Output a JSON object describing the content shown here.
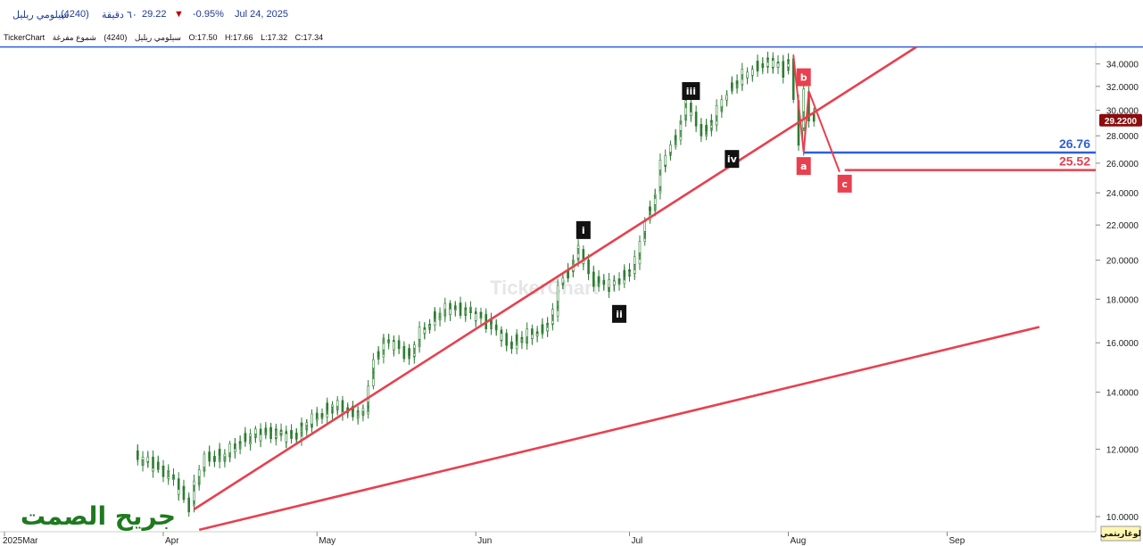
{
  "header": {
    "symbol_name": "سيلومي ريليل",
    "code": "(4240)",
    "interval": "٦٠ دقيقة",
    "last_price": "29.22",
    "change_pct": "-0.95%",
    "date": "Jul 24, 2025",
    "change_direction": "down"
  },
  "ohlc_bar": {
    "brand": "TickerChart",
    "symbol": "سيلومي ريليل",
    "code": "(4240)",
    "chart_kind": "شموع مفرغة",
    "open": "O:17.50",
    "high": "H:17.66",
    "low": "L:17.32",
    "close": "C:17.34"
  },
  "watermark": "TickerChart",
  "brand_overlay": "جريح الصمت",
  "scale_button": "لوغاريتمي",
  "colors": {
    "candle": "#2e7d32",
    "trend": "#e8404f",
    "level_blue": "#2f5fd6",
    "level_red": "#e8404f",
    "top_line": "#2f5fd6",
    "price_tag": "#8b0d0d"
  },
  "chart_data": {
    "type": "candlestick",
    "y_scale": "log",
    "ylim": [
      9.6,
      36.0
    ],
    "y_ticks": [
      "34.0000",
      "32.0000",
      "30.0000",
      "28.0000",
      "26.0000",
      "24.0000",
      "22.0000",
      "20.0000",
      "18.0000",
      "16.0000",
      "14.0000",
      "12.0000",
      "10.0000"
    ],
    "x_ticks": [
      "2025Mar",
      "Apr",
      "May",
      "Jun",
      "Jul",
      "Aug",
      "Sep"
    ],
    "last_price_tag": "29.2200",
    "levels": [
      {
        "value": 26.76,
        "label": "26.76",
        "color": "#2f5fd6"
      },
      {
        "value": 25.52,
        "label": "25.52",
        "color": "#e8404f"
      }
    ],
    "resistance_line": 35.6,
    "series": [
      {
        "date": "2025-03-27",
        "close": 11.8
      },
      {
        "date": "2025-03-31",
        "close": 11.5
      },
      {
        "date": "2025-04-03",
        "close": 11.2
      },
      {
        "date": "2025-04-07",
        "close": 10.3
      },
      {
        "date": "2025-04-08",
        "close": 10.9
      },
      {
        "date": "2025-04-10",
        "close": 11.7
      },
      {
        "date": "2025-04-14",
        "close": 11.8
      },
      {
        "date": "2025-04-17",
        "close": 12.3
      },
      {
        "date": "2025-04-22",
        "close": 12.6
      },
      {
        "date": "2025-04-27",
        "close": 12.4
      },
      {
        "date": "2025-05-01",
        "close": 13.0
      },
      {
        "date": "2025-05-05",
        "close": 13.5
      },
      {
        "date": "2025-05-08",
        "close": 13.3
      },
      {
        "date": "2025-05-11",
        "close": 13.2
      },
      {
        "date": "2025-05-13",
        "close": 15.3
      },
      {
        "date": "2025-05-15",
        "close": 16.1
      },
      {
        "date": "2025-05-18",
        "close": 15.8
      },
      {
        "date": "2025-05-20",
        "close": 15.4
      },
      {
        "date": "2025-05-22",
        "close": 16.4
      },
      {
        "date": "2025-05-25",
        "close": 17.2
      },
      {
        "date": "2025-05-28",
        "close": 17.6
      },
      {
        "date": "2025-06-01",
        "close": 17.4
      },
      {
        "date": "2025-06-05",
        "close": 16.8
      },
      {
        "date": "2025-06-08",
        "close": 15.9
      },
      {
        "date": "2025-06-11",
        "close": 16.2
      },
      {
        "date": "2025-06-15",
        "close": 16.6
      },
      {
        "date": "2025-06-17",
        "close": 17.2
      },
      {
        "date": "2025-06-18",
        "close": 18.7
      },
      {
        "date": "2025-06-20",
        "close": 19.4
      },
      {
        "date": "2025-06-22",
        "close": 20.6
      },
      {
        "date": "2025-06-24",
        "close": 19.2
      },
      {
        "date": "2025-06-26",
        "close": 18.8
      },
      {
        "date": "2025-06-28",
        "close": 18.7
      },
      {
        "date": "2025-07-01",
        "close": 19.2
      },
      {
        "date": "2025-07-03",
        "close": 19.8
      },
      {
        "date": "2025-07-05",
        "close": 22.3
      },
      {
        "date": "2025-07-07",
        "close": 24.0
      },
      {
        "date": "2025-07-08",
        "close": 25.8
      },
      {
        "date": "2025-07-10",
        "close": 27.2
      },
      {
        "date": "2025-07-12",
        "close": 29.2
      },
      {
        "date": "2025-07-13",
        "close": 30.6
      },
      {
        "date": "2025-07-15",
        "close": 28.6
      },
      {
        "date": "2025-07-17",
        "close": 28.4
      },
      {
        "date": "2025-07-19",
        "close": 29.9
      },
      {
        "date": "2025-07-21",
        "close": 31.6
      },
      {
        "date": "2025-07-24",
        "close": 32.9
      },
      {
        "date": "2025-07-27",
        "close": 33.8
      },
      {
        "date": "2025-07-30",
        "close": 34.2
      },
      {
        "date": "2025-08-01",
        "close": 33.4
      },
      {
        "date": "2025-08-02",
        "close": 34.5
      },
      {
        "date": "2025-08-03",
        "close": 30.8
      },
      {
        "date": "2025-08-04",
        "close": 27.0
      },
      {
        "date": "2025-08-05",
        "close": 31.5
      },
      {
        "date": "2025-08-06",
        "close": 29.6
      },
      {
        "date": "2025-08-07",
        "close": 29.2
      }
    ],
    "wave_labels": [
      {
        "label": "i",
        "date": "2025-06-22",
        "value": 21.7,
        "style": "dark"
      },
      {
        "label": "ii",
        "date": "2025-06-29",
        "value": 17.3,
        "style": "dark"
      },
      {
        "label": "iii",
        "date": "2025-07-13",
        "value": 31.6,
        "style": "dark"
      },
      {
        "label": "iv",
        "date": "2025-07-21",
        "value": 26.3,
        "style": "dark"
      },
      {
        "label": "b",
        "date": "2025-08-04",
        "value": 32.8,
        "style": "red"
      },
      {
        "label": "a",
        "date": "2025-08-04",
        "value": 25.8,
        "style": "red"
      },
      {
        "label": "c",
        "date": "2025-08-12",
        "value": 24.6,
        "style": "red"
      }
    ],
    "abc_path": [
      {
        "date": "2025-08-02",
        "value": 34.8
      },
      {
        "date": "2025-08-04",
        "value": 26.8
      },
      {
        "date": "2025-08-05",
        "value": 31.6
      },
      {
        "date": "2025-08-11",
        "value": 25.4
      }
    ],
    "trendlines": [
      {
        "from": {
          "date": "2025-04-07",
          "value": 10.2
        },
        "to": {
          "date": "2025-08-26",
          "value": 35.6
        }
      },
      {
        "from": {
          "date": "2025-04-08",
          "value": 9.65
        },
        "to": {
          "date": "2025-09-19",
          "value": 16.7
        }
      }
    ]
  }
}
